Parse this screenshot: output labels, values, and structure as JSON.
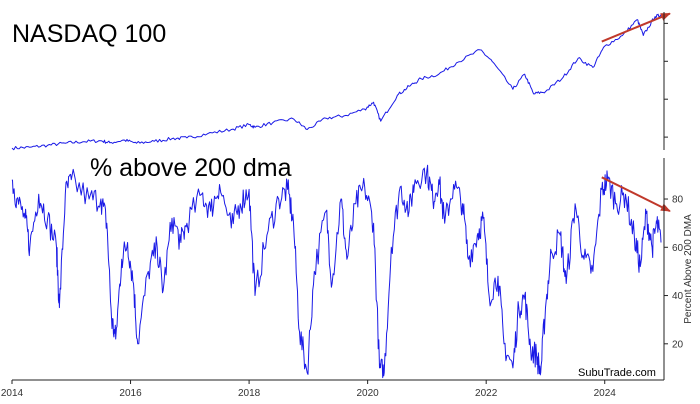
{
  "colors": {
    "line": "#1a1ae6",
    "arrow": "#c0392b",
    "axis": "#222222",
    "background": "#ffffff"
  },
  "chart_data": [
    {
      "type": "line",
      "title": "NASDAQ 100",
      "xlabel": "",
      "ylabel": "",
      "x_range": [
        2014.0,
        2025.0
      ],
      "series": [
        {
          "points": [
            [
              2014.0,
              3.55
            ],
            [
              2014.3,
              3.65
            ],
            [
              2014.6,
              3.92
            ],
            [
              2014.9,
              4.2
            ],
            [
              2015.2,
              4.4
            ],
            [
              2015.5,
              4.52
            ],
            [
              2015.65,
              4.25
            ],
            [
              2015.9,
              4.6
            ],
            [
              2016.1,
              4.2
            ],
            [
              2016.4,
              4.45
            ],
            [
              2016.7,
              4.8
            ],
            [
              2016.95,
              4.9
            ],
            [
              2017.3,
              5.45
            ],
            [
              2017.7,
              6.0
            ],
            [
              2018.0,
              6.65
            ],
            [
              2018.1,
              6.3
            ],
            [
              2018.4,
              6.9
            ],
            [
              2018.75,
              7.4
            ],
            [
              2018.98,
              6.0
            ],
            [
              2019.3,
              7.5
            ],
            [
              2019.6,
              7.8
            ],
            [
              2019.95,
              8.7
            ],
            [
              2020.1,
              9.6
            ],
            [
              2020.22,
              7.1
            ],
            [
              2020.5,
              10.5
            ],
            [
              2020.7,
              11.7
            ],
            [
              2020.9,
              12.7
            ],
            [
              2021.2,
              13.3
            ],
            [
              2021.5,
              14.8
            ],
            [
              2021.9,
              16.5
            ],
            [
              2022.1,
              15.0
            ],
            [
              2022.45,
              11.3
            ],
            [
              2022.65,
              13.3
            ],
            [
              2022.8,
              10.7
            ],
            [
              2023.0,
              11.0
            ],
            [
              2023.3,
              12.9
            ],
            [
              2023.55,
              15.4
            ],
            [
              2023.8,
              14.2
            ],
            [
              2024.0,
              17.0
            ],
            [
              2024.3,
              18.4
            ],
            [
              2024.55,
              20.5
            ],
            [
              2024.65,
              18.4
            ],
            [
              2024.85,
              20.9
            ],
            [
              2024.95,
              21.1
            ]
          ]
        }
      ],
      "y_range": [
        3.3,
        21.5
      ],
      "y_ticks_unlabeled": [
        5,
        10,
        15,
        20
      ],
      "annotation": {
        "type": "arrow",
        "direction": "up",
        "from": [
          2023.95,
          17.6
        ],
        "to": [
          2025.1,
          21.3
        ]
      }
    },
    {
      "type": "line",
      "title": "% above 200 dma",
      "xlabel": "",
      "ylabel": "Percent Above 200 DMA",
      "x_range": [
        2014.0,
        2025.0
      ],
      "ylim": [
        5,
        97
      ],
      "yticks": [
        20,
        40,
        60,
        80
      ],
      "xticks": [
        2014,
        2016,
        2018,
        2020,
        2022,
        2024
      ],
      "series": [
        {
          "points": [
            [
              2014.0,
              88
            ],
            [
              2014.08,
              80
            ],
            [
              2014.22,
              72
            ],
            [
              2014.3,
              60
            ],
            [
              2014.45,
              82
            ],
            [
              2014.6,
              72
            ],
            [
              2014.75,
              60
            ],
            [
              2014.8,
              35
            ],
            [
              2014.9,
              82
            ],
            [
              2015.0,
              88
            ],
            [
              2015.3,
              80
            ],
            [
              2015.5,
              80
            ],
            [
              2015.6,
              70
            ],
            [
              2015.68,
              30
            ],
            [
              2015.75,
              22
            ],
            [
              2015.85,
              55
            ],
            [
              2015.95,
              62
            ],
            [
              2016.05,
              45
            ],
            [
              2016.12,
              20
            ],
            [
              2016.3,
              50
            ],
            [
              2016.45,
              60
            ],
            [
              2016.55,
              42
            ],
            [
              2016.7,
              72
            ],
            [
              2016.85,
              62
            ],
            [
              2016.95,
              70
            ],
            [
              2017.2,
              82
            ],
            [
              2017.35,
              75
            ],
            [
              2017.5,
              86
            ],
            [
              2017.7,
              68
            ],
            [
              2017.85,
              78
            ],
            [
              2018.0,
              84
            ],
            [
              2018.1,
              40
            ],
            [
              2018.3,
              65
            ],
            [
              2018.5,
              80
            ],
            [
              2018.65,
              84
            ],
            [
              2018.75,
              70
            ],
            [
              2018.85,
              25
            ],
            [
              2018.98,
              8
            ],
            [
              2019.1,
              50
            ],
            [
              2019.3,
              75
            ],
            [
              2019.4,
              45
            ],
            [
              2019.55,
              80
            ],
            [
              2019.65,
              55
            ],
            [
              2019.8,
              78
            ],
            [
              2019.95,
              85
            ],
            [
              2020.1,
              70
            ],
            [
              2020.2,
              10
            ],
            [
              2020.28,
              8
            ],
            [
              2020.4,
              60
            ],
            [
              2020.55,
              85
            ],
            [
              2020.7,
              75
            ],
            [
              2020.8,
              88
            ],
            [
              2021.0,
              92
            ],
            [
              2021.1,
              80
            ],
            [
              2021.2,
              88
            ],
            [
              2021.3,
              70
            ],
            [
              2021.45,
              86
            ],
            [
              2021.6,
              78
            ],
            [
              2021.7,
              55
            ],
            [
              2021.85,
              65
            ],
            [
              2021.95,
              72
            ],
            [
              2022.05,
              40
            ],
            [
              2022.2,
              48
            ],
            [
              2022.3,
              20
            ],
            [
              2022.45,
              10
            ],
            [
              2022.55,
              35
            ],
            [
              2022.65,
              40
            ],
            [
              2022.75,
              18
            ],
            [
              2022.85,
              15
            ],
            [
              2022.92,
              8
            ],
            [
              2023.0,
              35
            ],
            [
              2023.1,
              58
            ],
            [
              2023.25,
              65
            ],
            [
              2023.35,
              45
            ],
            [
              2023.5,
              78
            ],
            [
              2023.65,
              55
            ],
            [
              2023.8,
              50
            ],
            [
              2023.95,
              84
            ],
            [
              2024.05,
              88
            ],
            [
              2024.2,
              78
            ],
            [
              2024.35,
              82
            ],
            [
              2024.5,
              64
            ],
            [
              2024.6,
              52
            ],
            [
              2024.7,
              74
            ],
            [
              2024.8,
              60
            ],
            [
              2024.88,
              70
            ],
            [
              2024.95,
              62
            ]
          ]
        }
      ],
      "annotation": {
        "type": "arrow",
        "direction": "down",
        "from": [
          2023.95,
          89
        ],
        "to": [
          2025.1,
          75
        ]
      }
    }
  ],
  "watermark": "SubuTrade.com"
}
